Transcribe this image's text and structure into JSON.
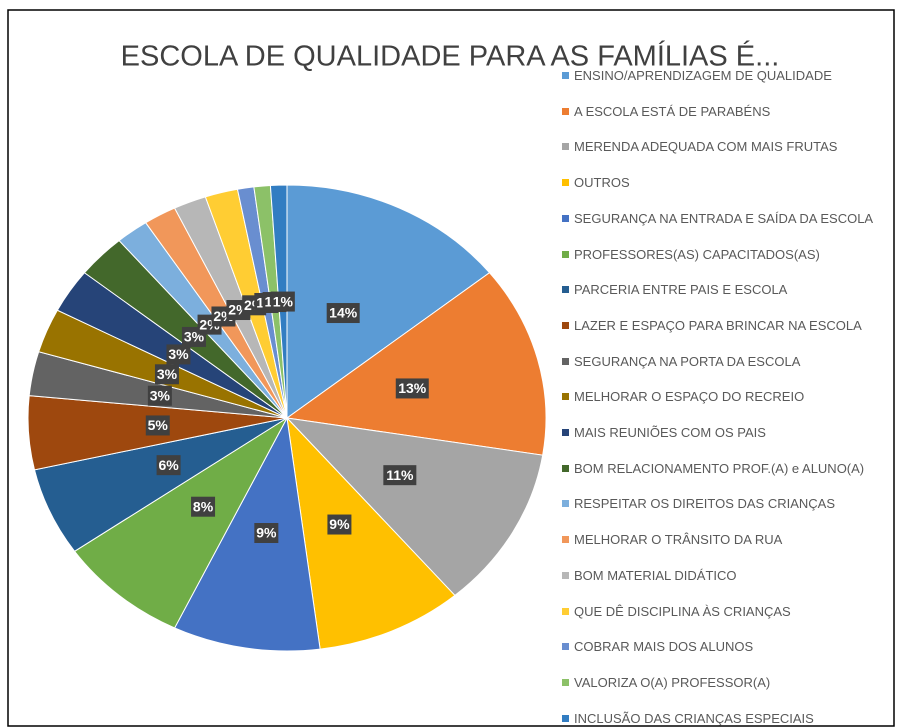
{
  "chart_data": {
    "type": "pie",
    "title": "ESCOLA DE QUALIDADE PARA AS FAMÍLIAS É...",
    "categories": [
      "ENSINO/APRENDIZAGEM DE QUALIDADE",
      "A ESCOLA ESTÁ DE PARABÉNS",
      "MERENDA ADEQUADA COM  MAIS FRUTAS",
      "OUTROS",
      "SEGURANÇA NA ENTRADA E SAÍDA DA ESCOLA",
      "PROFESSORES(AS) CAPACITADOS(AS)",
      "PARCERIA ENTRE PAIS E ESCOLA",
      "LAZER E ESPAÇO PARA BRINCAR NA ESCOLA",
      "SEGURANÇA NA PORTA DA ESCOLA",
      "MELHORAR O ESPAÇO DO RECREIO",
      "MAIS REUNIÕES COM OS PAIS",
      "BOM RELACIONAMENTO PROF.(A) e ALUNO(A)",
      "RESPEITAR OS DIREITOS DAS CRIANÇAS",
      "MELHORAR O TRÂNSITO DA RUA",
      "BOM MATERIAL DIDÁTICO",
      "QUE DÊ DISCIPLINA ÀS CRIANÇAS",
      "COBRAR MAIS DOS ALUNOS",
      "VALORIZA O(A) PROFESSOR(A)",
      "INCLUSÃO DAS CRIANÇAS ESPECIAIS"
    ],
    "values": [
      14,
      13,
      11,
      9,
      9,
      8,
      6,
      5,
      3,
      3,
      3,
      3,
      2,
      2,
      2,
      2,
      1,
      1,
      1
    ],
    "value_labels": [
      "14%",
      "13%",
      "11%",
      "9%",
      "9%",
      "8%",
      "6%",
      "5%",
      "3%",
      "3%",
      "3%",
      "3%",
      "2%",
      "2%",
      "2%",
      "2%",
      "1%",
      "1%",
      "1%"
    ],
    "colors": [
      "#5b9bd5",
      "#ed7d31",
      "#a5a5a5",
      "#ffc000",
      "#4472c4",
      "#70ad47",
      "#255e91",
      "#9e480e",
      "#636363",
      "#997300",
      "#264478",
      "#43682b",
      "#7cafdd",
      "#f1975a",
      "#b7b7b7",
      "#ffcd33",
      "#698ed0",
      "#8cc168",
      "#327dc2"
    ],
    "legend": "right"
  }
}
